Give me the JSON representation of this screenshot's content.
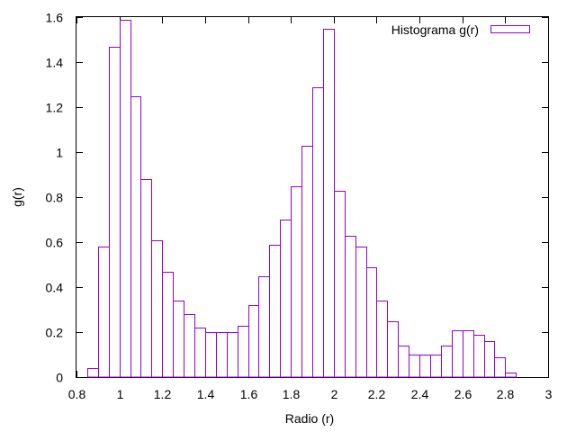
{
  "chart_data": {
    "type": "bar",
    "style": "histogram",
    "xlabel": "Radio (r)",
    "ylabel": "g(r)",
    "xlim": [
      0.8,
      3.0
    ],
    "ylim": [
      0,
      1.6
    ],
    "xticks": [
      "0.8",
      "1",
      "1.2",
      "1.4",
      "1.6",
      "1.8",
      "2",
      "2.2",
      "2.4",
      "2.6",
      "2.8",
      "3"
    ],
    "yticks": [
      "0",
      "0.2",
      "0.4",
      "0.6",
      "0.8",
      "1",
      "1.2",
      "1.4",
      "1.6"
    ],
    "grid": false,
    "legend_position": "top-right",
    "bar_color": "#9400d3",
    "series": [
      {
        "name": "Histograma g(r)",
        "bins": [
          [
            0.85,
            0.9,
            0.04
          ],
          [
            0.9,
            0.95,
            0.58
          ],
          [
            0.95,
            1.0,
            1.47
          ],
          [
            1.0,
            1.05,
            1.59
          ],
          [
            1.05,
            1.1,
            1.25
          ],
          [
            1.1,
            1.15,
            0.88
          ],
          [
            1.15,
            1.2,
            0.61
          ],
          [
            1.2,
            1.25,
            0.47
          ],
          [
            1.25,
            1.3,
            0.34
          ],
          [
            1.3,
            1.35,
            0.28
          ],
          [
            1.35,
            1.4,
            0.22
          ],
          [
            1.4,
            1.45,
            0.2
          ],
          [
            1.45,
            1.5,
            0.2
          ],
          [
            1.5,
            1.55,
            0.2
          ],
          [
            1.55,
            1.6,
            0.23
          ],
          [
            1.6,
            1.65,
            0.32
          ],
          [
            1.65,
            1.7,
            0.45
          ],
          [
            1.7,
            1.75,
            0.59
          ],
          [
            1.75,
            1.8,
            0.7
          ],
          [
            1.8,
            1.85,
            0.85
          ],
          [
            1.85,
            1.9,
            1.03
          ],
          [
            1.9,
            1.95,
            1.29
          ],
          [
            1.95,
            2.0,
            1.55
          ],
          [
            2.0,
            2.05,
            0.83
          ],
          [
            2.05,
            2.1,
            0.63
          ],
          [
            2.1,
            2.15,
            0.58
          ],
          [
            2.15,
            2.2,
            0.49
          ],
          [
            2.2,
            2.25,
            0.34
          ],
          [
            2.25,
            2.3,
            0.25
          ],
          [
            2.3,
            2.35,
            0.14
          ],
          [
            2.35,
            2.4,
            0.1
          ],
          [
            2.4,
            2.45,
            0.1
          ],
          [
            2.45,
            2.5,
            0.1
          ],
          [
            2.5,
            2.55,
            0.14
          ],
          [
            2.55,
            2.6,
            0.21
          ],
          [
            2.6,
            2.65,
            0.21
          ],
          [
            2.65,
            2.7,
            0.19
          ],
          [
            2.7,
            2.75,
            0.16
          ],
          [
            2.75,
            2.8,
            0.09
          ],
          [
            2.8,
            2.85,
            0.02
          ]
        ]
      }
    ]
  }
}
